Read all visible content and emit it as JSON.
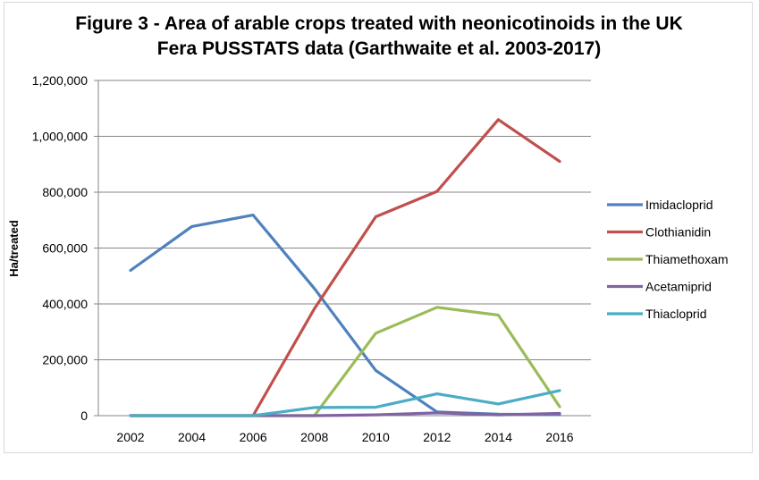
{
  "chart_data": {
    "type": "line",
    "title_line1": "Figure 3 - Area of arable crops treated with neonicotinoids in the UK",
    "title_line2": "Fera PUSSTATS data (Garthwaite et al. 2003-2017)",
    "xlabel": "",
    "ylabel": "Ha/treated",
    "x": [
      "2002",
      "2004",
      "2006",
      "2008",
      "2010",
      "2012",
      "2014",
      "2016"
    ],
    "ylim": [
      0,
      1200000
    ],
    "yticks": [
      0,
      200000,
      400000,
      600000,
      800000,
      1000000,
      1200000
    ],
    "ytick_labels": [
      "0",
      "200,000",
      "400,000",
      "600,000",
      "800,000",
      "1,000,000",
      "1,200,000"
    ],
    "grid": true,
    "legend_position": "right",
    "series": [
      {
        "name": "Imidacloprid",
        "color": "#4f81bd",
        "values": [
          520000,
          677000,
          718000,
          455000,
          162000,
          13000,
          5000,
          4000
        ]
      },
      {
        "name": "Clothianidin",
        "color": "#c0504d",
        "values": [
          0,
          0,
          0,
          383000,
          712000,
          803000,
          1060000,
          910000
        ]
      },
      {
        "name": "Thiamethoxam",
        "color": "#9bbb59",
        "values": [
          0,
          0,
          0,
          0,
          295000,
          388000,
          360000,
          32000
        ]
      },
      {
        "name": "Acetamiprid",
        "color": "#8064a2",
        "values": [
          0,
          0,
          0,
          0,
          3000,
          10000,
          3000,
          8000
        ]
      },
      {
        "name": "Thiacloprid",
        "color": "#4bacc6",
        "values": [
          0,
          0,
          0,
          29000,
          30000,
          78000,
          42000,
          90000
        ]
      }
    ]
  }
}
